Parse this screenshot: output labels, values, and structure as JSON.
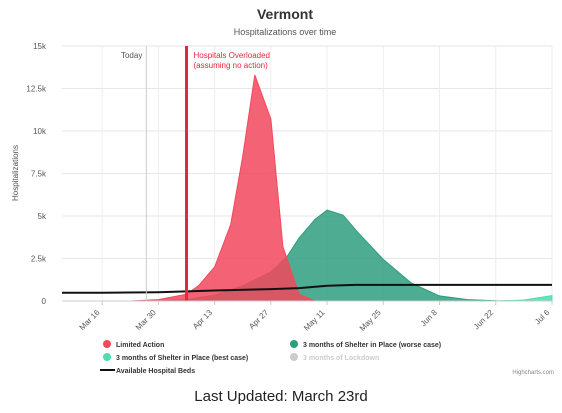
{
  "chart_data": {
    "type": "area",
    "title": "Vermont",
    "subtitle": "Hospitalizations over time",
    "ylabel": "Hospitalizations",
    "xlabel": "",
    "ylim": [
      0,
      15000
    ],
    "y_ticks": [
      0,
      2500,
      5000,
      7500,
      10000,
      12500,
      15000
    ],
    "y_tick_labels": [
      "0",
      "2.5k",
      "5k",
      "7.5k",
      "10k",
      "12.5k",
      "15k"
    ],
    "x_range": [
      "2020-03-06",
      "2020-07-06"
    ],
    "x_ticks": [
      "2020-03-16",
      "2020-03-30",
      "2020-04-13",
      "2020-04-27",
      "2020-05-11",
      "2020-05-25",
      "2020-06-08",
      "2020-06-22",
      "2020-07-06"
    ],
    "x_tick_labels": [
      "Mar 16",
      "Mar 30",
      "Apr 13",
      "Apr 27",
      "May 11",
      "May 25",
      "Jun 8",
      "Jun 22",
      "Jul 6"
    ],
    "grid": true,
    "series": [
      {
        "name": "3 months of Shelter in Place (worse case)",
        "kind": "area",
        "color": "#2e9e7f",
        "points": [
          [
            "2020-03-06",
            0
          ],
          [
            "2020-03-30",
            0
          ],
          [
            "2020-04-06",
            80
          ],
          [
            "2020-04-13",
            350
          ],
          [
            "2020-04-20",
            900
          ],
          [
            "2020-04-27",
            1700
          ],
          [
            "2020-05-01",
            2600
          ],
          [
            "2020-05-04",
            3700
          ],
          [
            "2020-05-08",
            4800
          ],
          [
            "2020-05-11",
            5350
          ],
          [
            "2020-05-15",
            5050
          ],
          [
            "2020-05-19",
            3950
          ],
          [
            "2020-05-25",
            2450
          ],
          [
            "2020-06-01",
            1050
          ],
          [
            "2020-06-08",
            300
          ],
          [
            "2020-06-15",
            80
          ],
          [
            "2020-06-22",
            10
          ],
          [
            "2020-07-06",
            0
          ]
        ]
      },
      {
        "name": "Limited Action",
        "kind": "area",
        "color": "#f2485d",
        "points": [
          [
            "2020-03-06",
            0
          ],
          [
            "2020-03-23",
            0
          ],
          [
            "2020-03-30",
            80
          ],
          [
            "2020-04-06",
            400
          ],
          [
            "2020-04-09",
            900
          ],
          [
            "2020-04-13",
            2000
          ],
          [
            "2020-04-17",
            4500
          ],
          [
            "2020-04-20",
            8500
          ],
          [
            "2020-04-23",
            13300
          ],
          [
            "2020-04-27",
            10700
          ],
          [
            "2020-04-30",
            3200
          ],
          [
            "2020-05-04",
            400
          ],
          [
            "2020-05-08",
            0
          ],
          [
            "2020-07-06",
            0
          ]
        ]
      },
      {
        "name": "3 months of Shelter in Place (best case)",
        "kind": "area",
        "color": "#4fdcb0",
        "points": [
          [
            "2020-03-06",
            0
          ],
          [
            "2020-06-22",
            0
          ],
          [
            "2020-06-29",
            60
          ],
          [
            "2020-07-06",
            320
          ]
        ]
      },
      {
        "name": "3 months of Lockdown",
        "kind": "area",
        "color": "#cccccc",
        "hidden": true,
        "points": []
      },
      {
        "name": "Available Hospital Beds",
        "kind": "line",
        "color": "#111111",
        "points": [
          [
            "2020-03-06",
            480
          ],
          [
            "2020-03-16",
            480
          ],
          [
            "2020-03-30",
            520
          ],
          [
            "2020-04-13",
            620
          ],
          [
            "2020-04-27",
            700
          ],
          [
            "2020-05-04",
            760
          ],
          [
            "2020-05-11",
            900
          ],
          [
            "2020-05-18",
            950
          ],
          [
            "2020-05-25",
            950
          ],
          [
            "2020-06-08",
            950
          ],
          [
            "2020-07-06",
            950
          ]
        ]
      }
    ],
    "plot_lines": [
      {
        "date": "2020-03-27",
        "label": "Today",
        "color": "#cccccc",
        "label_color": "#555555"
      },
      {
        "date": "2020-04-06",
        "label_lines": [
          "Hospitals Overloaded",
          "(assuming no action)"
        ],
        "color": "#e0283e",
        "label_color": "#e0283e"
      }
    ],
    "legend": {
      "placement": "bottom",
      "items": [
        {
          "name": "Limited Action",
          "color": "#f2485d",
          "symbol": "circle",
          "hidden": false
        },
        {
          "name": "3 months of Shelter in Place (worse case)",
          "color": "#2e9e7f",
          "symbol": "circle",
          "hidden": false
        },
        {
          "name": "3 months of Shelter in Place (best case)",
          "color": "#4fdcb0",
          "symbol": "circle",
          "hidden": false
        },
        {
          "name": "3 months of Lockdown",
          "color": "#cccccc",
          "symbol": "circle",
          "hidden": true
        },
        {
          "name": "Available Hospital Beds",
          "color": "#111111",
          "symbol": "line",
          "hidden": false
        }
      ]
    },
    "credits": "Highcharts.com"
  },
  "footer": {
    "text": "Last Updated: March 23rd"
  }
}
